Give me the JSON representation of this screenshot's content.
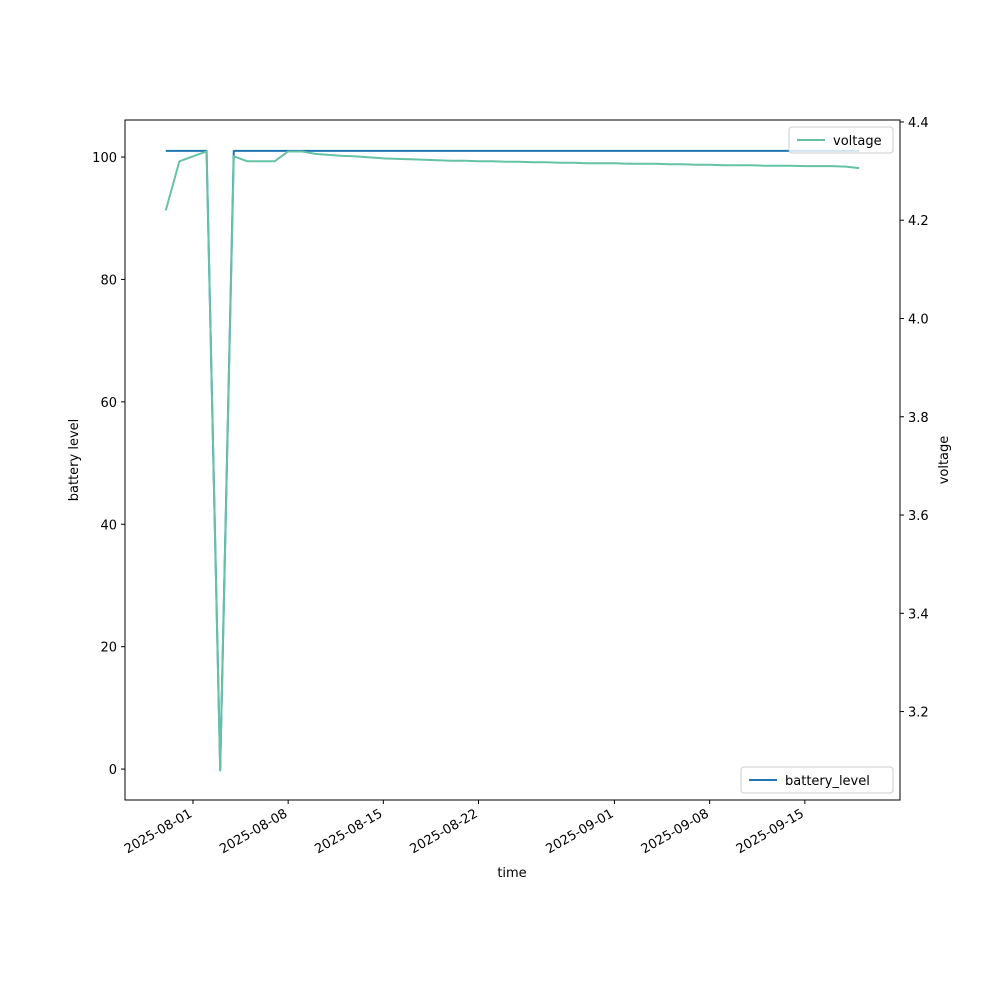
{
  "chart_data": {
    "type": "line",
    "x_label": "time",
    "y_label": "battery level",
    "y2_label": "voltage",
    "x": [
      "2025-07-30",
      "2025-07-31",
      "2025-08-01",
      "2025-08-02",
      "2025-08-03",
      "2025-08-04",
      "2025-08-05",
      "2025-08-06",
      "2025-08-07",
      "2025-08-08",
      "2025-08-09",
      "2025-08-10",
      "2025-08-11",
      "2025-08-12",
      "2025-08-13",
      "2025-08-14",
      "2025-08-15",
      "2025-08-16",
      "2025-08-17",
      "2025-08-18",
      "2025-08-19",
      "2025-08-20",
      "2025-08-21",
      "2025-08-22",
      "2025-08-23",
      "2025-08-24",
      "2025-08-25",
      "2025-08-26",
      "2025-08-27",
      "2025-08-28",
      "2025-08-29",
      "2025-08-30",
      "2025-08-31",
      "2025-09-01",
      "2025-09-02",
      "2025-09-03",
      "2025-09-04",
      "2025-09-05",
      "2025-09-06",
      "2025-09-07",
      "2025-09-08",
      "2025-09-09",
      "2025-09-10",
      "2025-09-11",
      "2025-09-12",
      "2025-09-13",
      "2025-09-14",
      "2025-09-15",
      "2025-09-16",
      "2025-09-17",
      "2025-09-18",
      "2025-09-19"
    ],
    "series": [
      {
        "name": "battery_level",
        "color": "#1f77b4",
        "axis": "y",
        "legend_loc": "lower right",
        "values": [
          101,
          101,
          101,
          101,
          0,
          101,
          101,
          101,
          101,
          101,
          101,
          101,
          101,
          101,
          101,
          101,
          101,
          101,
          101,
          101,
          101,
          101,
          101,
          101,
          101,
          101,
          101,
          101,
          101,
          101,
          101,
          101,
          101,
          101,
          101,
          101,
          101,
          101,
          101,
          101,
          101,
          101,
          101,
          101,
          101,
          101,
          101,
          101,
          101,
          101,
          101,
          101
        ]
      },
      {
        "name": "voltage",
        "color": "#66c2a5",
        "axis": "y2",
        "legend_loc": "upper right",
        "values": [
          4.22,
          4.32,
          4.33,
          4.34,
          3.08,
          4.33,
          4.32,
          4.32,
          4.32,
          4.34,
          4.34,
          4.335,
          4.333,
          4.331,
          4.33,
          4.328,
          4.326,
          4.325,
          4.324,
          4.323,
          4.322,
          4.321,
          4.321,
          4.32,
          4.32,
          4.319,
          4.319,
          4.318,
          4.318,
          4.317,
          4.317,
          4.316,
          4.316,
          4.316,
          4.315,
          4.315,
          4.315,
          4.314,
          4.314,
          4.313,
          4.313,
          4.312,
          4.312,
          4.312,
          4.311,
          4.311,
          4.311,
          4.31,
          4.31,
          4.31,
          4.309,
          4.306
        ]
      }
    ],
    "xlim": [
      "2025-07-27",
      "2025-09-22"
    ],
    "xticks": [
      "2025-08-01",
      "2025-08-08",
      "2025-08-15",
      "2025-08-22",
      "2025-09-01",
      "2025-09-08",
      "2025-09-15"
    ],
    "ylim": [
      -5.05,
      106.05
    ],
    "yticks": [
      0,
      20,
      40,
      60,
      80,
      100
    ],
    "y2lim": [
      3.02,
      4.404
    ],
    "y2ticks": [
      3.2,
      3.4,
      3.6,
      3.8,
      {
        "value": 4,
        "label": "4.0"
      },
      4.2,
      4.4
    ]
  }
}
